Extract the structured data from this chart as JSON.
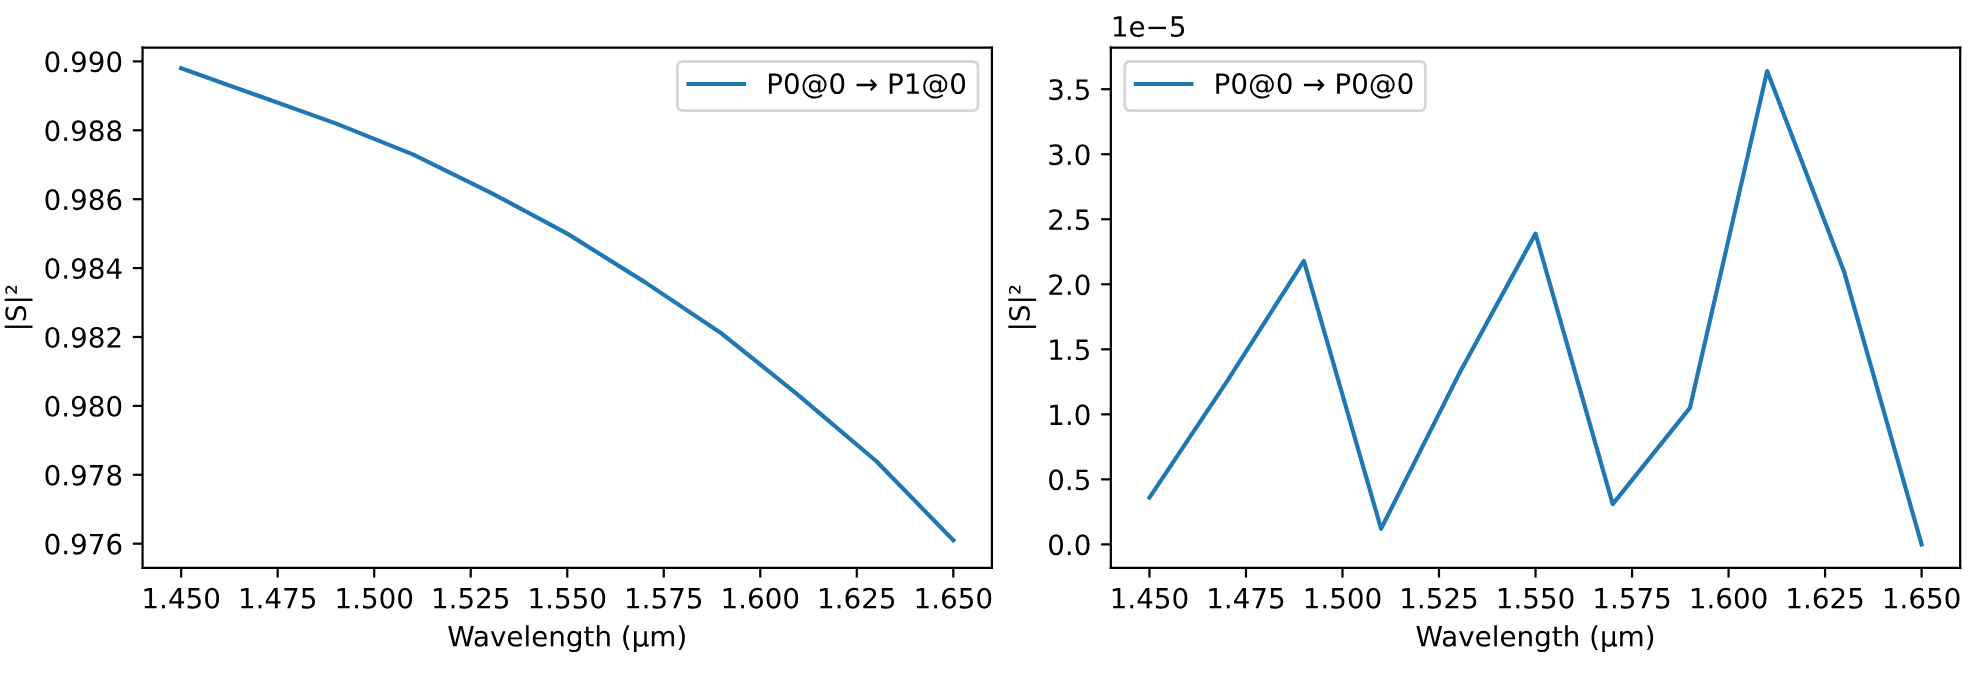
{
  "chart_data": [
    {
      "type": "line",
      "xlabel": "Wavelength (μm)",
      "ylabel": "|S|²",
      "x": [
        1.45,
        1.47,
        1.49,
        1.51,
        1.53,
        1.55,
        1.57,
        1.59,
        1.61,
        1.63,
        1.65
      ],
      "series": [
        {
          "name": "P0@0 → P1@0",
          "color": "#1f77b4",
          "values": [
            0.9898,
            0.989,
            0.9882,
            0.9873,
            0.9862,
            0.985,
            0.9836,
            0.9821,
            0.9803,
            0.9784,
            0.9761
          ]
        }
      ],
      "xlim": [
        1.44,
        1.66
      ],
      "xticks": [
        {
          "value": 1.45,
          "label": "1.450"
        },
        {
          "value": 1.475,
          "label": "1.475"
        },
        {
          "value": 1.5,
          "label": "1.500"
        },
        {
          "value": 1.525,
          "label": "1.525"
        },
        {
          "value": 1.55,
          "label": "1.550"
        },
        {
          "value": 1.575,
          "label": "1.575"
        },
        {
          "value": 1.6,
          "label": "1.600"
        },
        {
          "value": 1.625,
          "label": "1.625"
        },
        {
          "value": 1.65,
          "label": "1.650"
        }
      ],
      "ylim": [
        0.9753,
        0.9904
      ],
      "yticks": [
        {
          "value": 0.976,
          "label": "0.976"
        },
        {
          "value": 0.978,
          "label": "0.978"
        },
        {
          "value": 0.98,
          "label": "0.980"
        },
        {
          "value": 0.982,
          "label": "0.982"
        },
        {
          "value": 0.984,
          "label": "0.984"
        },
        {
          "value": 0.986,
          "label": "0.986"
        },
        {
          "value": 0.988,
          "label": "0.988"
        },
        {
          "value": 0.99,
          "label": "0.990"
        }
      ],
      "legend": "top right",
      "grid": false
    },
    {
      "type": "line",
      "xlabel": "Wavelength (μm)",
      "ylabel": "|S|²",
      "annotations": [
        "1e−5"
      ],
      "x": [
        1.45,
        1.47,
        1.49,
        1.51,
        1.53,
        1.55,
        1.57,
        1.59,
        1.61,
        1.63,
        1.65
      ],
      "series": [
        {
          "name": "P0@0 → P0@0",
          "color": "#1f77b4",
          "values": [
            0.36,
            1.25,
            2.18,
            0.12,
            1.3,
            2.39,
            0.31,
            1.05,
            3.64,
            2.09,
            0.0
          ]
        }
      ],
      "xlim": [
        1.44,
        1.66
      ],
      "xticks": [
        {
          "value": 1.45,
          "label": "1.450"
        },
        {
          "value": 1.475,
          "label": "1.475"
        },
        {
          "value": 1.5,
          "label": "1.500"
        },
        {
          "value": 1.525,
          "label": "1.525"
        },
        {
          "value": 1.55,
          "label": "1.550"
        },
        {
          "value": 1.575,
          "label": "1.575"
        },
        {
          "value": 1.6,
          "label": "1.600"
        },
        {
          "value": 1.625,
          "label": "1.625"
        },
        {
          "value": 1.65,
          "label": "1.650"
        }
      ],
      "ylim": [
        -0.18,
        3.82
      ],
      "yticks": [
        {
          "value": 0,
          "label": "0.0"
        },
        0.5,
        {
          "value": 1,
          "label": "1.0"
        },
        1.5,
        {
          "value": 2,
          "label": "2.0"
        },
        2.5,
        {
          "value": 3,
          "label": "3.0"
        },
        3.5
      ],
      "legend": "top left",
      "grid": false
    }
  ]
}
